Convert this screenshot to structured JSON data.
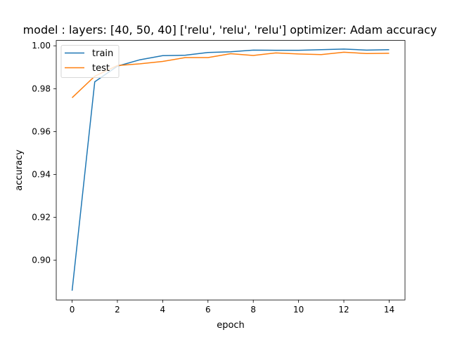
{
  "chart_data": {
    "type": "line",
    "title": "model : layers: [40, 50, 40] ['relu', 'relu', 'relu'] optimizer: Adam accuracy",
    "xlabel": "epoch",
    "ylabel": "accuracy",
    "xlim": [
      -0.7,
      14.7
    ],
    "ylim": [
      0.8815,
      1.0025
    ],
    "xticks": [
      0,
      2,
      4,
      6,
      8,
      10,
      12,
      14
    ],
    "yticks": [
      0.9,
      0.92,
      0.94,
      0.96,
      0.98,
      1.0
    ],
    "ytick_labels": [
      "0.90",
      "0.92",
      "0.94",
      "0.96",
      "0.98",
      "1.00"
    ],
    "legend_position": "top-left",
    "x": [
      0,
      1,
      2,
      3,
      4,
      5,
      6,
      7,
      8,
      9,
      10,
      11,
      12,
      13,
      14
    ],
    "series": [
      {
        "name": "train",
        "color": "#1f77b4",
        "values": [
          0.8858,
          0.9832,
          0.9905,
          0.9935,
          0.9954,
          0.9956,
          0.9969,
          0.9972,
          0.998,
          0.9979,
          0.9979,
          0.9982,
          0.9985,
          0.998,
          0.9982
        ]
      },
      {
        "name": "test",
        "color": "#ff7f0e",
        "values": [
          0.9758,
          0.9858,
          0.9908,
          0.9916,
          0.9927,
          0.9945,
          0.9945,
          0.9963,
          0.9955,
          0.9967,
          0.9962,
          0.9959,
          0.997,
          0.9964,
          0.9965
        ]
      }
    ]
  }
}
